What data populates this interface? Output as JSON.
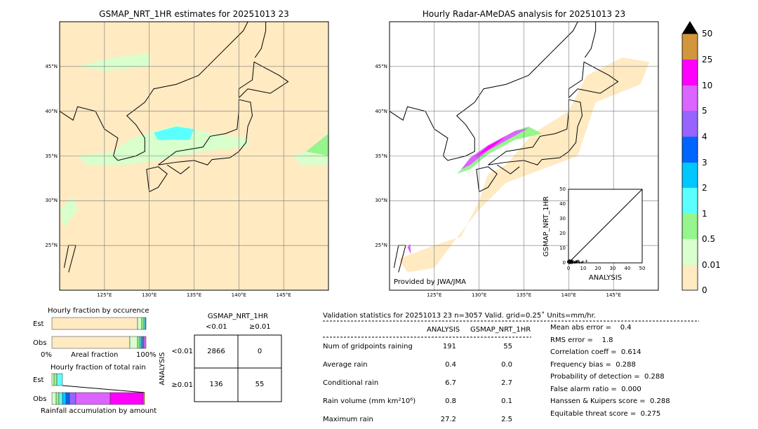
{
  "colors": {
    "levels": [
      "#ffeac2",
      "#d8ffcc",
      "#96f58c",
      "#5cffff",
      "#00c8ff",
      "#0064ff",
      "#9664ff",
      "#dc64ff",
      "#ff00ff",
      "#d2963c"
    ],
    "over": "#000000"
  },
  "chart_data": [
    {
      "type": "heatmap",
      "title": "GSMAP_NRT_1HR estimates for 20251013 23",
      "xlim": [
        120,
        150
      ],
      "ylim": [
        20,
        50
      ],
      "xticks": [
        "125°E",
        "130°E",
        "135°E",
        "140°E",
        "145°E"
      ],
      "yticks": [
        "45°N",
        "40°N",
        "35°N",
        "30°N",
        "25°N"
      ],
      "grid": true
    },
    {
      "type": "heatmap",
      "title": "Hourly Radar-AMeDAS analysis for 20251013 23",
      "xlim": [
        120,
        150
      ],
      "ylim": [
        20,
        50
      ],
      "xticks": [
        "125°E",
        "130°E",
        "135°E",
        "140°E",
        "145°E"
      ],
      "yticks": [
        "45°N",
        "40°N",
        "35°N",
        "30°N",
        "25°N"
      ],
      "grid": true,
      "annotation": "Provided by JWA/JMA"
    },
    {
      "type": "scatter",
      "xlabel": "ANALYSIS",
      "ylabel": "GSMAP_NRT_1HR",
      "xlim": [
        0,
        50
      ],
      "ylim": [
        0,
        50
      ],
      "ticks": [
        "0",
        "10",
        "20",
        "30",
        "40",
        "50"
      ]
    },
    {
      "type": "colorbar",
      "tick_labels": [
        "0",
        "0.01",
        "0.5",
        "1",
        "2",
        "3",
        "4",
        "5",
        "10",
        "25",
        "50"
      ]
    },
    {
      "type": "bar",
      "title": "Hourly fraction by occurence",
      "categories": [
        "Est",
        "Obs"
      ],
      "xlabel": "Areal fraction",
      "xtick_labels": [
        "0%",
        "100%"
      ],
      "series": [
        {
          "values": [
            0.982,
            0.018
          ]
        },
        {
          "values": [
            0.938,
            0.062
          ]
        }
      ]
    },
    {
      "type": "bar",
      "title": "Hourly fraction of total rain",
      "categories": [
        "Est",
        "Obs"
      ],
      "xlabel": "Rainfall accumulation by amount"
    }
  ],
  "contingency": {
    "title": "GSMAP_NRT_1HR",
    "col_labels": [
      "<0.01",
      "≥0.01"
    ],
    "row_title": "ANALYSIS",
    "row_labels": [
      "<0.01",
      "≥0.01"
    ],
    "cells": [
      [
        "2866",
        "0"
      ],
      [
        "136",
        "55"
      ]
    ]
  },
  "stats": {
    "header": "Validation statistics for 20251013 23  n=3057 Valid. grid=0.25˚ Units=mm/hr.",
    "cols": [
      "ANALYSIS",
      "GSMAP_NRT_1HR"
    ],
    "rows": [
      {
        "label": "Num of gridpoints raining",
        "a": "191",
        "g": "55"
      },
      {
        "label": "Average rain",
        "a": "0.4",
        "g": "0.0"
      },
      {
        "label": "Conditional rain",
        "a": "6.7",
        "g": "2.7"
      },
      {
        "label": "Rain volume (mm km²10⁶)",
        "a": "0.8",
        "g": "0.1"
      },
      {
        "label": "Maximum rain",
        "a": "27.2",
        "g": "2.5"
      }
    ],
    "scores": [
      "Mean abs error =    0.4",
      "RMS error =    1.8",
      "Correlation coeff =  0.614",
      "Frequency bias =  0.288",
      "Probability of detection =  0.288",
      "False alarm ratio =  0.000",
      "Hanssen & Kuipers score =  0.288",
      "Equitable threat score =  0.275"
    ]
  }
}
